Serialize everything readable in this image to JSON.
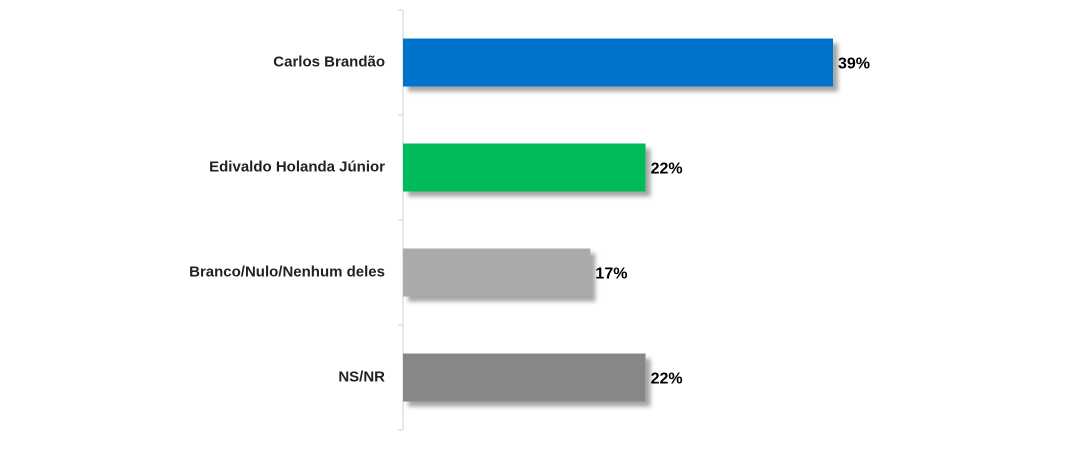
{
  "chart_data": {
    "type": "bar",
    "orientation": "horizontal",
    "categories": [
      "Carlos Brandão",
      "Edivaldo Holanda Júnior",
      "Branco/Nulo/Nenhum deles",
      "NS/NR"
    ],
    "values": [
      39,
      22,
      17,
      22
    ],
    "value_labels": [
      "39%",
      "22%",
      "17%",
      "22%"
    ],
    "colors": [
      "#0173cb",
      "#05bb5a",
      "#aaaaaa",
      "#878787"
    ]
  }
}
